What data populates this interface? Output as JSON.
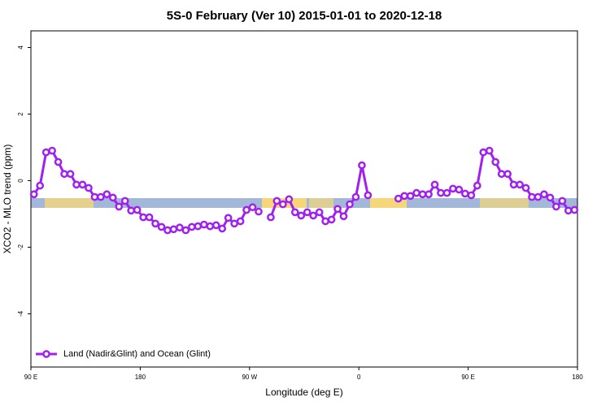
{
  "chart_data": {
    "type": "line",
    "title": "5S-0 February (Ver 10)   2015-01-01 to 2020-12-18",
    "x_label": "Longitude (deg E)",
    "y_label": "XCO2 - MLO trend (ppm)",
    "x": [
      92.5,
      97.5,
      102.5,
      107.5,
      112.5,
      117.5,
      122.5,
      127.5,
      132.5,
      137.5,
      142.5,
      147.5,
      152.5,
      157.5,
      162.5,
      167.5,
      172.5,
      177.5,
      182.5,
      187.5,
      192.5,
      197.5,
      202.5,
      207.5,
      212.5,
      217.5,
      222.5,
      227.5,
      232.5,
      237.5,
      242.5,
      247.5,
      252.5,
      257.5,
      262.5,
      267.5,
      272.5,
      277.5,
      282.5,
      287.5,
      292.5,
      297.5,
      302.5,
      307.5,
      312.5,
      317.5,
      322.5,
      327.5,
      332.5,
      337.5,
      342.5,
      347.5,
      352.5,
      357.5,
      362.5,
      367.5,
      372.5,
      377.5,
      382.5,
      387.5,
      392.5,
      397.5,
      402.5,
      407.5,
      412.5,
      417.5,
      422.5,
      427.5,
      432.5,
      437.5,
      442.5,
      447.5,
      452.5,
      457.5,
      462.5,
      467.5,
      472.5,
      477.5,
      482.5,
      487.5,
      492.5,
      497.5,
      502.5,
      507.5,
      512.5,
      517.5,
      522.5,
      527.5,
      532.5,
      537.5
    ],
    "series": [
      {
        "name": "Land (Nadir&Glint) and Ocean (Glint)",
        "color": "#a020f0",
        "values": [
          -0.41,
          -0.15,
          0.85,
          0.9,
          0.56,
          0.2,
          0.2,
          -0.12,
          -0.12,
          -0.22,
          -0.49,
          -0.49,
          -0.41,
          -0.51,
          -0.78,
          -0.61,
          -0.9,
          -0.88,
          -1.1,
          -1.1,
          -1.29,
          -1.39,
          -1.49,
          -1.46,
          -1.41,
          -1.49,
          -1.39,
          -1.37,
          -1.32,
          -1.37,
          -1.34,
          -1.44,
          -1.12,
          -1.29,
          -1.22,
          -0.88,
          -0.8,
          -0.93,
          null,
          -1.1,
          -0.61,
          -0.71,
          -0.56,
          -0.95,
          -1.05,
          -0.95,
          -1.05,
          -0.95,
          -1.22,
          -1.17,
          -0.85,
          -1.07,
          -0.71,
          -0.49,
          0.46,
          -0.44,
          null,
          null,
          null,
          null,
          -0.54,
          -0.46,
          -0.46,
          -0.37,
          -0.41,
          -0.41,
          -0.12,
          -0.37,
          -0.37,
          -0.24,
          -0.27,
          -0.39,
          -0.44,
          -0.15,
          0.85,
          0.9,
          0.56,
          0.2,
          0.2,
          -0.12,
          -0.12,
          -0.22,
          -0.49,
          -0.49,
          -0.41,
          -0.51,
          -0.78,
          -0.61,
          -0.9,
          -0.88
        ]
      }
    ],
    "xlim": [
      90,
      540
    ],
    "xticks": [
      {
        "value": 90,
        "label": "90 E"
      },
      180,
      {
        "value": 270,
        "label": "90 W"
      },
      {
        "value": 360,
        "label": "0"
      },
      {
        "value": 450,
        "label": "90 E"
      },
      {
        "value": 540,
        "label": "180"
      }
    ],
    "ylim": [
      -5.6,
      4.5
    ],
    "yticks": [
      -4,
      -2,
      0,
      2,
      4
    ],
    "legend": "bottom-left"
  }
}
